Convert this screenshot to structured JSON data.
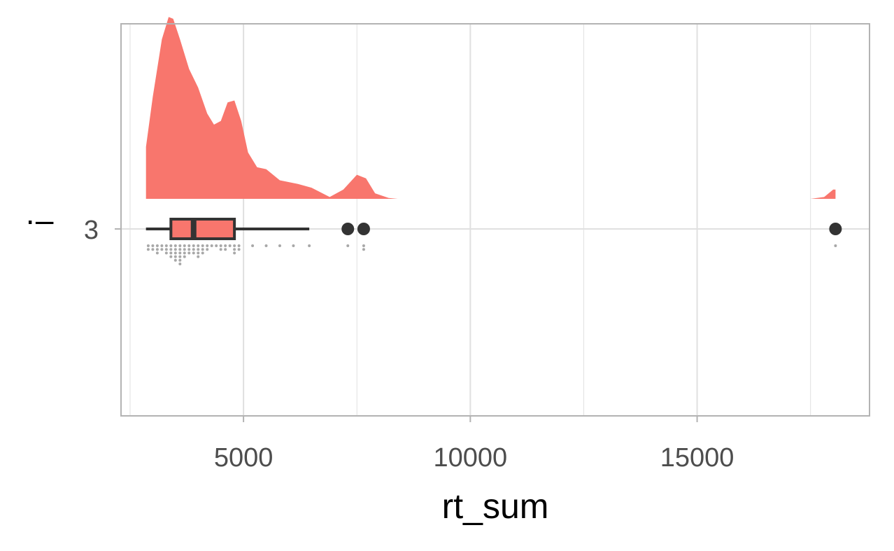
{
  "chart_data": {
    "type": "raincloud",
    "xlabel": "rt_sum",
    "ylabel": "·–",
    "xlim": [
      2300,
      18800
    ],
    "x_ticks": [
      5000,
      10000,
      15000
    ],
    "x_tick_labels": [
      "5000",
      "10000",
      "15000"
    ],
    "x_minor_ticks": [
      2500,
      7500,
      12500,
      17500
    ],
    "categories": [
      "3"
    ],
    "grid": true,
    "colors": {
      "fill": "#f8766d",
      "box_line": "#333333",
      "grid": "#e0e0e0",
      "panel_border": "#b3b3b3",
      "rain": "#a8a8a8"
    },
    "density": [
      [
        2850,
        0.28
      ],
      [
        3000,
        0.55
      ],
      [
        3200,
        0.86
      ],
      [
        3350,
        0.98
      ],
      [
        3450,
        0.97
      ],
      [
        3600,
        0.86
      ],
      [
        3800,
        0.7
      ],
      [
        4000,
        0.6
      ],
      [
        4200,
        0.46
      ],
      [
        4350,
        0.4
      ],
      [
        4500,
        0.42
      ],
      [
        4650,
        0.52
      ],
      [
        4800,
        0.53
      ],
      [
        4950,
        0.42
      ],
      [
        5100,
        0.25
      ],
      [
        5300,
        0.17
      ],
      [
        5500,
        0.16
      ],
      [
        5800,
        0.1
      ],
      [
        6200,
        0.08
      ],
      [
        6500,
        0.06
      ],
      [
        6900,
        0.01
      ],
      [
        7200,
        0.05
      ],
      [
        7500,
        0.13
      ],
      [
        7700,
        0.11
      ],
      [
        7900,
        0.03
      ],
      [
        8200,
        0.005
      ],
      [
        8400,
        0.0
      ],
      [
        17500,
        0.0
      ],
      [
        17800,
        0.01
      ],
      [
        18000,
        0.05
      ],
      [
        18050,
        0.05
      ]
    ],
    "box": {
      "q1": 3400,
      "median": 3900,
      "q3": 4800,
      "whisker_low": 2850,
      "whisker_high": 6450
    },
    "outliers": [
      7300,
      7650,
      18050
    ],
    "rain": [
      {
        "x": 2900,
        "n": 2
      },
      {
        "x": 3000,
        "n": 2
      },
      {
        "x": 3100,
        "n": 3
      },
      {
        "x": 3200,
        "n": 2
      },
      {
        "x": 3300,
        "n": 3
      },
      {
        "x": 3400,
        "n": 4
      },
      {
        "x": 3500,
        "n": 5
      },
      {
        "x": 3600,
        "n": 6
      },
      {
        "x": 3700,
        "n": 4
      },
      {
        "x": 3800,
        "n": 3
      },
      {
        "x": 3900,
        "n": 3
      },
      {
        "x": 4000,
        "n": 4
      },
      {
        "x": 4100,
        "n": 3
      },
      {
        "x": 4200,
        "n": 2
      },
      {
        "x": 4300,
        "n": 1
      },
      {
        "x": 4400,
        "n": 1
      },
      {
        "x": 4500,
        "n": 2
      },
      {
        "x": 4600,
        "n": 2
      },
      {
        "x": 4700,
        "n": 1
      },
      {
        "x": 4800,
        "n": 3
      },
      {
        "x": 4900,
        "n": 2
      },
      {
        "x": 5200,
        "n": 1
      },
      {
        "x": 5500,
        "n": 1
      },
      {
        "x": 5800,
        "n": 1
      },
      {
        "x": 6100,
        "n": 1
      },
      {
        "x": 6450,
        "n": 1
      },
      {
        "x": 7300,
        "n": 1
      },
      {
        "x": 7650,
        "n": 2
      },
      {
        "x": 18050,
        "n": 1
      }
    ]
  }
}
